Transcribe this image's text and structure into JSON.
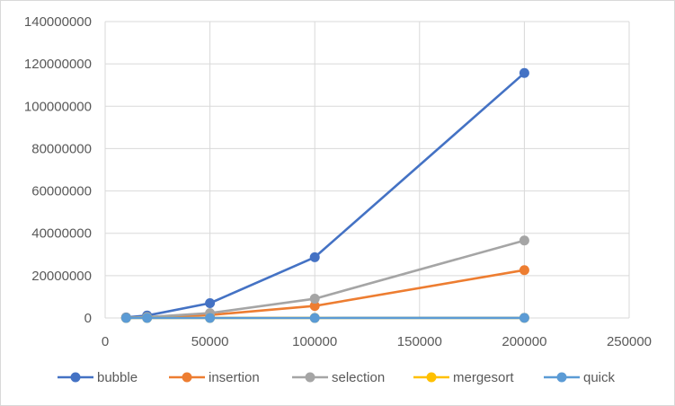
{
  "chart_data": {
    "type": "scatter",
    "title": "",
    "xlabel": "",
    "ylabel": "",
    "xlim": [
      0,
      250000
    ],
    "ylim": [
      0,
      140000000
    ],
    "x_ticks": [
      "0",
      "50000",
      "100000",
      "150000",
      "200000",
      "250000"
    ],
    "y_ticks": [
      "0",
      "20000000",
      "40000000",
      "60000000",
      "80000000",
      "100000000",
      "120000000",
      "140000000"
    ],
    "grid": true,
    "legend_position": "bottom",
    "x": [
      10000,
      20000,
      50000,
      100000,
      200000
    ],
    "series": [
      {
        "name": "bubble",
        "color": "#4472C4",
        "values": [
          290000,
          1150000,
          7000000,
          28700000,
          115700000
        ]
      },
      {
        "name": "insertion",
        "color": "#ED7D31",
        "values": [
          60000,
          250000,
          1400000,
          5700000,
          22600000
        ]
      },
      {
        "name": "selection",
        "color": "#A5A5A5",
        "values": [
          100000,
          400000,
          2300000,
          9100000,
          36600000
        ]
      },
      {
        "name": "mergesort",
        "color": "#FFC000",
        "values": [
          3000,
          6000,
          15000,
          30000,
          60000
        ]
      },
      {
        "name": "quick",
        "color": "#5B9BD5",
        "values": [
          2000,
          4000,
          10000,
          20000,
          40000
        ]
      }
    ]
  }
}
